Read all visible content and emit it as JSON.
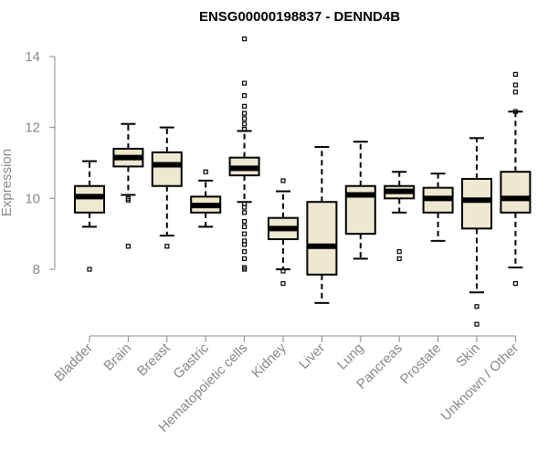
{
  "chart_data": {
    "type": "boxplot",
    "title": "ENSG00000198837 - DENND4B",
    "ylabel": "Expression",
    "xlabel": "",
    "ylim": [
      6.5,
      14.5
    ],
    "yticks": [
      8,
      10,
      12,
      14
    ],
    "grid": false,
    "box_fill": "#EEE8D0",
    "box_stroke": "#000000",
    "categories": [
      "Bladder",
      "Brain",
      "Breast",
      "Gastric",
      "Hematopoietic cells",
      "Kidney",
      "Liver",
      "Lung",
      "Pancreas",
      "Prostate",
      "Skin",
      "Unknown / Other"
    ],
    "boxes": [
      {
        "category": "Bladder",
        "whisker_low": 9.2,
        "q1": 9.6,
        "median": 10.05,
        "q3": 10.35,
        "whisker_high": 11.05,
        "outliers": [
          8.0
        ]
      },
      {
        "category": "Brain",
        "whisker_low": 10.1,
        "q1": 10.9,
        "median": 11.15,
        "q3": 11.4,
        "whisker_high": 12.1,
        "outliers": [
          10.0,
          9.95,
          8.65
        ]
      },
      {
        "category": "Breast",
        "whisker_low": 8.95,
        "q1": 10.35,
        "median": 10.95,
        "q3": 11.3,
        "whisker_high": 12.0,
        "outliers": [
          8.65
        ]
      },
      {
        "category": "Gastric",
        "whisker_low": 9.2,
        "q1": 9.6,
        "median": 9.8,
        "q3": 10.05,
        "whisker_high": 10.5,
        "outliers": [
          10.75
        ]
      },
      {
        "category": "Hematopoietic cells",
        "whisker_low": 9.9,
        "q1": 10.65,
        "median": 10.85,
        "q3": 11.15,
        "whisker_high": 11.9,
        "outliers": [
          14.5,
          13.25,
          12.9,
          12.6,
          12.4,
          12.25,
          12.1,
          11.95,
          9.85,
          9.75,
          9.6,
          9.35,
          9.2,
          9.0,
          8.8,
          8.7,
          8.5,
          8.3,
          8.05,
          8.0
        ]
      },
      {
        "category": "Kidney",
        "whisker_low": 8.0,
        "q1": 8.85,
        "median": 9.15,
        "q3": 9.45,
        "whisker_high": 10.2,
        "outliers": [
          10.5,
          7.95,
          7.6
        ]
      },
      {
        "category": "Liver",
        "whisker_low": 7.05,
        "q1": 7.85,
        "median": 8.65,
        "q3": 9.9,
        "whisker_high": 11.45,
        "outliers": []
      },
      {
        "category": "Lung",
        "whisker_low": 8.3,
        "q1": 9.0,
        "median": 10.1,
        "q3": 10.35,
        "whisker_high": 11.6,
        "outliers": []
      },
      {
        "category": "Pancreas",
        "whisker_low": 9.6,
        "q1": 10.0,
        "median": 10.2,
        "q3": 10.35,
        "whisker_high": 10.75,
        "outliers": [
          8.5,
          8.3
        ]
      },
      {
        "category": "Prostate",
        "whisker_low": 8.8,
        "q1": 9.6,
        "median": 10.0,
        "q3": 10.3,
        "whisker_high": 10.7,
        "outliers": []
      },
      {
        "category": "Skin",
        "whisker_low": 7.35,
        "q1": 9.15,
        "median": 9.95,
        "q3": 10.55,
        "whisker_high": 11.7,
        "outliers": [
          6.95,
          6.45
        ]
      },
      {
        "category": "Unknown / Other",
        "whisker_low": 8.05,
        "q1": 9.6,
        "median": 10.0,
        "q3": 10.75,
        "whisker_high": 12.45,
        "outliers": [
          13.5,
          13.2,
          13.0,
          12.45,
          7.6
        ]
      }
    ]
  }
}
